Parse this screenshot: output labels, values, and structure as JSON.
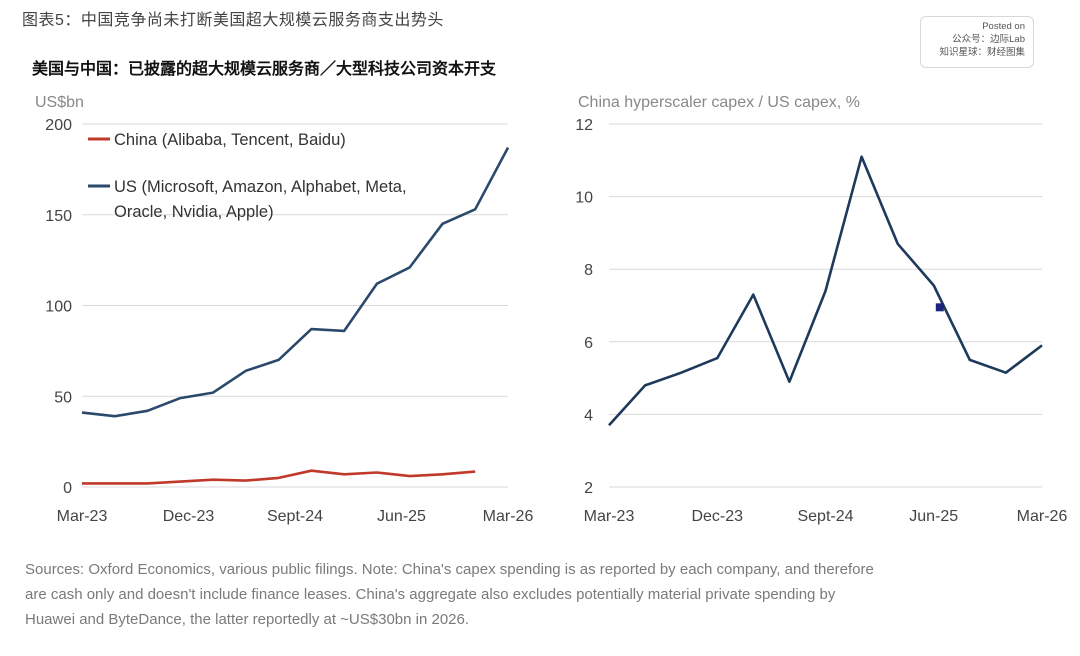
{
  "header": {
    "figure_title": "图表5：中国竞争尚未打断美国超大规模云服务商支出势头",
    "subtitle": "美国与中国：已披露的超大规模云服务商／大型科技公司资本开支"
  },
  "watermark": {
    "line1": "Posted on",
    "line2": "公众号：边际Lab",
    "line3": "知识星球：财经图集"
  },
  "footer": {
    "source_line1": "Sources: Oxford Economics, various public filings. Note: China's capex spending is as reported by each company, and therefore",
    "source_line2": "are cash only and doesn't include finance leases. China's aggregate also excludes potentially material private spending by",
    "source_line3": "Huawei and ByteDance, the latter reportedly at ~US$30bn in 2026."
  },
  "colors": {
    "us": "#2b4a6b",
    "china": "#c0392b",
    "ratio": "#1e3a5a",
    "grid": "#d9d9d9",
    "axis_text": "#444444",
    "marker": "#1a237e"
  },
  "chart_data": [
    {
      "type": "line",
      "axis_unit_label": "US$bn",
      "ylim": [
        0,
        200
      ],
      "yticks": [
        0,
        50,
        100,
        150,
        200
      ],
      "x_tick_labels": [
        "Mar-23",
        "Dec-23",
        "Sept-24",
        "Jun-25",
        "Mar-26"
      ],
      "grid": true,
      "legend_position": "top-left",
      "series": [
        {
          "name": "China (Alibaba, Tencent, Baidu)",
          "legend_lines": [
            "China (Alibaba, Tencent, Baidu)"
          ],
          "values": [
            2,
            2,
            2,
            3,
            4,
            3.5,
            5,
            9,
            7,
            8,
            6,
            7,
            8.5
          ]
        },
        {
          "name": "US (Microsoft, Amazon, Alphabet, Meta, Oracle, Nvidia, Apple)",
          "legend_lines": [
            "US (Microsoft, Amazon, Alphabet, Meta,",
            "Oracle, Nvidia, Apple)"
          ],
          "values": [
            41,
            39,
            42,
            49,
            52,
            64,
            70,
            87,
            86,
            112,
            121,
            145,
            153,
            187
          ]
        }
      ]
    },
    {
      "type": "line",
      "axis_unit_label": "China hyperscaler capex / US capex, %",
      "ylim": [
        2,
        12
      ],
      "yticks": [
        2,
        4,
        6,
        8,
        10,
        12
      ],
      "x_tick_labels": [
        "Mar-23",
        "Dec-23",
        "Sept-24",
        "Jun-25",
        "Mar-26"
      ],
      "grid": true,
      "series": [
        {
          "values": [
            3.7,
            4.8,
            5.15,
            5.55,
            7.3,
            4.9,
            7.4,
            11.1,
            8.7,
            7.55,
            5.5,
            5.15,
            5.9
          ]
        }
      ]
    }
  ]
}
